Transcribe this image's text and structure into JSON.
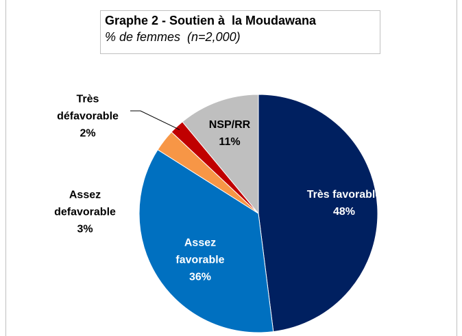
{
  "chart_data": {
    "type": "pie",
    "title": "Graphe 2 - Soutien à  la Moudawana",
    "subtitle": "% de femmes  (n=2,000)",
    "categories": [
      "Très favorable",
      "Assez favorable",
      "Assez defavorable",
      "Très défavorable",
      "NSP/RR"
    ],
    "values": [
      48,
      36,
      3,
      2,
      11
    ],
    "value_labels": [
      "48%",
      "36%",
      "3%",
      "2%",
      "11%"
    ],
    "colors": [
      "#002060",
      "#0070c0",
      "#f79646",
      "#c00000",
      "#bfbfbf"
    ]
  }
}
